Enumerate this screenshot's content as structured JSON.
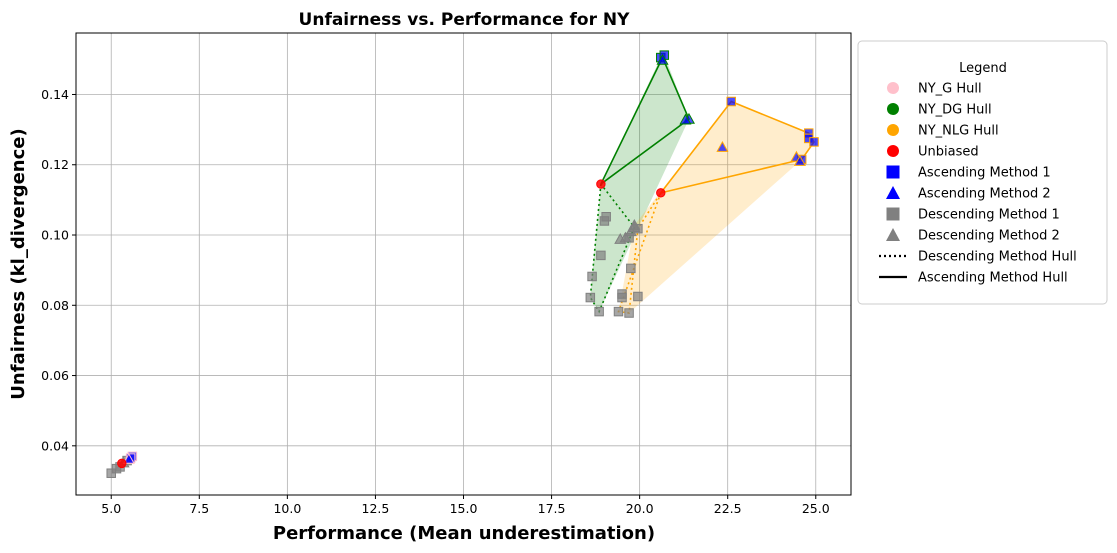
{
  "chart_data": {
    "type": "scatter",
    "title": "Unfairness vs. Performance for NY",
    "xlabel": "Performance (Mean underestimation)",
    "ylabel": "Unfairness (kl_divergence)",
    "xlim": [
      4.0,
      26.0
    ],
    "ylim": [
      0.026,
      0.1575
    ],
    "xticks": [
      "5.0",
      "7.5",
      "10.0",
      "12.5",
      "15.0",
      "17.5",
      "20.0",
      "22.5",
      "25.0"
    ],
    "xtick_values": [
      5.0,
      7.5,
      10.0,
      12.5,
      15.0,
      17.5,
      20.0,
      22.5,
      25.0
    ],
    "yticks": [
      "0.04",
      "0.06",
      "0.08",
      "0.10",
      "0.12",
      "0.14"
    ],
    "ytick_values": [
      0.04,
      0.06,
      0.08,
      0.1,
      0.12,
      0.14
    ],
    "grid": true,
    "legend": {
      "title": "Legend",
      "placement": "outside-right",
      "entries": [
        {
          "label": "NY_G Hull",
          "marker": "circle",
          "color": "#ffc0cb"
        },
        {
          "label": "NY_DG Hull",
          "marker": "circle",
          "color": "#008000"
        },
        {
          "label": "NY_NLG Hull",
          "marker": "circle",
          "color": "#ffa500"
        },
        {
          "label": "Unbiased",
          "marker": "circle",
          "color": "#ff0000"
        },
        {
          "label": "Ascending Method 1",
          "marker": "square",
          "color": "#0000ff"
        },
        {
          "label": "Ascending Method 2",
          "marker": "triangle",
          "color": "#0000ff"
        },
        {
          "label": "Descending Method 1",
          "marker": "square",
          "color": "#808080"
        },
        {
          "label": "Descending Method 2",
          "marker": "triangle",
          "color": "#808080"
        },
        {
          "label": "Descending Method Hull",
          "marker": "dotted-line",
          "color": "#000000"
        },
        {
          "label": "Ascending Method Hull",
          "marker": "solid-line",
          "color": "#000000"
        }
      ]
    },
    "groups": [
      {
        "name": "NY_G",
        "color": "#ffc0cb",
        "unbiased": [
          5.3,
          0.035
        ],
        "ascending_m1": [
          [
            5.6,
            0.037
          ],
          [
            5.55,
            0.0365
          ]
        ],
        "ascending_m2": [
          [
            5.5,
            0.0362
          ]
        ],
        "descending_m1": [
          [
            5.0,
            0.0322
          ],
          [
            5.15,
            0.0335
          ],
          [
            5.25,
            0.034
          ],
          [
            5.45,
            0.0358
          ]
        ],
        "descending_m2": [
          [
            5.35,
            0.0352
          ]
        ],
        "ascending_hull": [
          [
            5.3,
            0.035
          ],
          [
            5.6,
            0.037
          ]
        ],
        "descending_hull": [
          [
            5.3,
            0.035
          ],
          [
            5.0,
            0.0322
          ],
          [
            5.45,
            0.0358
          ]
        ]
      },
      {
        "name": "NY_DG",
        "color": "#008000",
        "unbiased": [
          18.9,
          0.1145
        ],
        "ascending_m1": [
          [
            20.6,
            0.1505
          ],
          [
            20.7,
            0.1512
          ]
        ],
        "ascending_m2": [
          [
            20.65,
            0.1498
          ],
          [
            21.4,
            0.133
          ],
          [
            21.3,
            0.1328
          ]
        ],
        "descending_m1": [
          [
            18.6,
            0.0822
          ],
          [
            18.65,
            0.0882
          ],
          [
            18.85,
            0.0782
          ],
          [
            18.9,
            0.0942
          ],
          [
            19.0,
            0.104
          ],
          [
            19.05,
            0.1052
          ],
          [
            19.7,
            0.0992
          ]
        ],
        "descending_m2": [
          [
            19.45,
            0.0988
          ],
          [
            19.6,
            0.0992
          ],
          [
            19.75,
            0.101
          ],
          [
            19.85,
            0.1022
          ]
        ],
        "ascending_hull": [
          [
            18.9,
            0.1145
          ],
          [
            20.65,
            0.1505
          ],
          [
            21.4,
            0.133
          ]
        ],
        "descending_hull": [
          [
            18.9,
            0.1145
          ],
          [
            18.6,
            0.0822
          ],
          [
            18.85,
            0.0782
          ],
          [
            19.85,
            0.1022
          ]
        ]
      },
      {
        "name": "NY_NLG",
        "color": "#ffa500",
        "unbiased": [
          20.6,
          0.112
        ],
        "ascending_m1": [
          [
            22.6,
            0.138
          ],
          [
            24.8,
            0.129
          ],
          [
            24.8,
            0.1275
          ],
          [
            24.95,
            0.1265
          ],
          [
            24.6,
            0.1215
          ]
        ],
        "ascending_m2": [
          [
            22.35,
            0.125
          ],
          [
            24.45,
            0.1222
          ],
          [
            24.55,
            0.121
          ]
        ],
        "descending_m1": [
          [
            19.4,
            0.0782
          ],
          [
            19.5,
            0.0822
          ],
          [
            19.5,
            0.0832
          ],
          [
            19.7,
            0.0778
          ],
          [
            19.75,
            0.0905
          ],
          [
            19.95,
            0.0825
          ],
          [
            19.95,
            0.1018
          ]
        ],
        "descending_m2": [
          [
            19.85,
            0.1028
          ]
        ],
        "ascending_hull": [
          [
            20.6,
            0.112
          ],
          [
            22.6,
            0.138
          ],
          [
            24.8,
            0.129
          ],
          [
            24.95,
            0.1265
          ],
          [
            24.6,
            0.1215
          ]
        ],
        "descending_hull": [
          [
            20.6,
            0.112
          ],
          [
            19.4,
            0.0782
          ],
          [
            19.7,
            0.0778
          ],
          [
            19.95,
            0.1018
          ]
        ]
      }
    ]
  }
}
